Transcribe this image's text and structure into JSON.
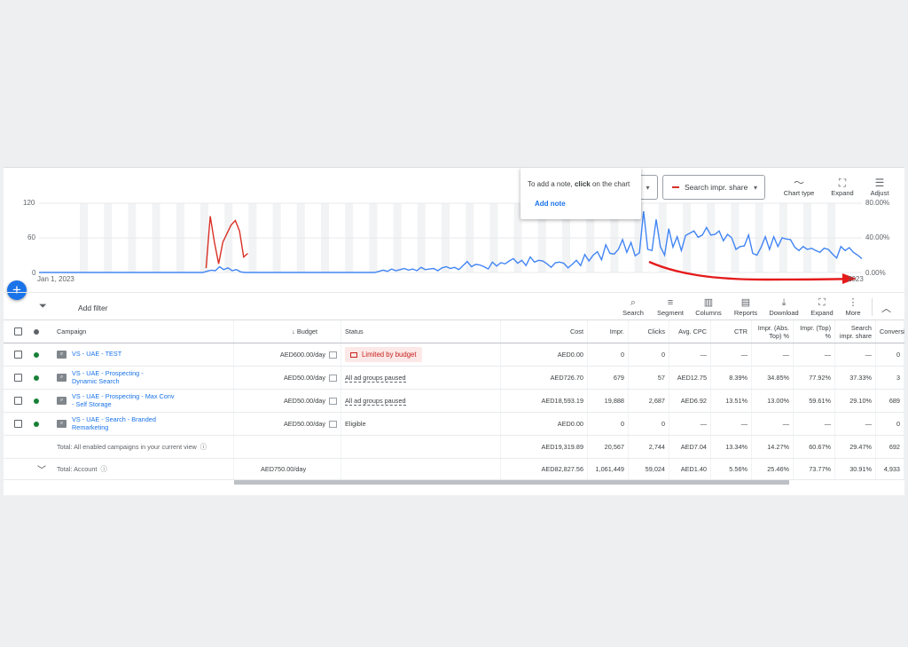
{
  "chart": {
    "y_left_ticks": [
      "120",
      "60",
      "0"
    ],
    "y_right_ticks": [
      "80.00%",
      "40.00%",
      "0.00%"
    ],
    "x_start": "Jan 1, 2023",
    "x_end": "2023",
    "note_popup": {
      "text_prefix": "To add a note, ",
      "text_bold": "click",
      "text_suffix": " on the chart",
      "add_note": "Add note"
    },
    "metric2_label": "Search impr. share",
    "colors": {
      "series1": "#4285f4",
      "series2": "#d93025",
      "arrow": "#e51b1b"
    },
    "tools": [
      {
        "icon": "chart-type-icon",
        "label": "Chart type"
      },
      {
        "icon": "expand-icon",
        "label": "Expand"
      },
      {
        "icon": "adjust-icon",
        "label": "Adjust"
      }
    ]
  },
  "toolbar": {
    "add_filter": "Add filter",
    "buttons": [
      {
        "icon": "search-icon",
        "label": "Search"
      },
      {
        "icon": "segment-icon",
        "label": "Segment"
      },
      {
        "icon": "columns-icon",
        "label": "Columns"
      },
      {
        "icon": "reports-icon",
        "label": "Reports"
      },
      {
        "icon": "download-icon",
        "label": "Download"
      },
      {
        "icon": "expand-icon",
        "label": "Expand"
      },
      {
        "icon": "more-icon",
        "label": "More"
      }
    ]
  },
  "table": {
    "headers": {
      "campaign": "Campaign",
      "budget": "Budget",
      "status": "Status",
      "cost": "Cost",
      "impr": "Impr.",
      "clicks": "Clicks",
      "avg_cpc": "Avg. CPC",
      "ctr": "CTR",
      "impr_abs_top": "Impr. (Abs. Top) %",
      "impr_top": "Impr. (Top) %",
      "search_impr_share": "Search impr. share",
      "conversions": "Conversi"
    },
    "rows": [
      {
        "campaign": "VS - UAE - TEST",
        "budget": "AED600.00/day",
        "status": "Limited by budget",
        "status_type": "limited",
        "cost": "AED0.00",
        "impr": "0",
        "clicks": "0",
        "avg_cpc": "—",
        "ctr": "—",
        "impr_abs_top": "—",
        "impr_top": "—",
        "search_impr_share": "—",
        "conversions": "0"
      },
      {
        "campaign": "VS - UAE - Prospecting - Dynamic Search",
        "budget": "AED50.00/day",
        "status": "All ad groups paused",
        "status_type": "paused",
        "cost": "AED726.70",
        "impr": "679",
        "clicks": "57",
        "avg_cpc": "AED12.75",
        "ctr": "8.39%",
        "impr_abs_top": "34.85%",
        "impr_top": "77.92%",
        "search_impr_share": "37.33%",
        "conversions": "3"
      },
      {
        "campaign": "VS - UAE - Prospecting - Max Conv - Self Storage",
        "budget": "AED50.00/day",
        "status": "All ad groups paused",
        "status_type": "paused",
        "cost": "AED18,593.19",
        "impr": "19,888",
        "clicks": "2,687",
        "avg_cpc": "AED6.92",
        "ctr": "13.51%",
        "impr_abs_top": "13.00%",
        "impr_top": "59.61%",
        "search_impr_share": "29.10%",
        "conversions": "689"
      },
      {
        "campaign": "VS - UAE - Search - Branded Remarketing",
        "budget": "AED50.00/day",
        "status": "Eligible",
        "status_type": "eligible",
        "cost": "AED0.00",
        "impr": "0",
        "clicks": "0",
        "avg_cpc": "—",
        "ctr": "—",
        "impr_abs_top": "—",
        "impr_top": "—",
        "search_impr_share": "—",
        "conversions": "0"
      }
    ],
    "total_enabled": {
      "label": "Total: All enabled campaigns in your current view",
      "cost": "AED19,319.89",
      "impr": "20,567",
      "clicks": "2,744",
      "avg_cpc": "AED7.04",
      "ctr": "13.34%",
      "impr_abs_top": "14.27%",
      "impr_top": "60.67%",
      "search_impr_share": "29.47%",
      "conversions": "692"
    },
    "total_account": {
      "label": "Total: Account",
      "budget": "AED750.00/day",
      "cost": "AED82,827.56",
      "impr": "1,061,449",
      "clicks": "59,024",
      "avg_cpc": "AED1.40",
      "ctr": "5.56%",
      "impr_abs_top": "25.46%",
      "impr_top": "73.77%",
      "search_impr_share": "30.91%",
      "conversions": "4,933"
    }
  },
  "chart_data": {
    "type": "line",
    "y_left_range": [
      0,
      120
    ],
    "y_right_range": [
      0,
      80
    ],
    "series": [
      {
        "color": "#4285f4",
        "axis": "left",
        "values": [
          0,
          0,
          0,
          0,
          0,
          0,
          0,
          0,
          0,
          0,
          0,
          0,
          0,
          0,
          0,
          0,
          0,
          0,
          0,
          0,
          0,
          0,
          0,
          0,
          0,
          0,
          0,
          0,
          0,
          0,
          0,
          0,
          0,
          0,
          0,
          0,
          0,
          0,
          0,
          0,
          2,
          4,
          3,
          10,
          5,
          8,
          3,
          5,
          1,
          0,
          0,
          0,
          0,
          0,
          0,
          0,
          0,
          0,
          0,
          0,
          0,
          0,
          0,
          0,
          0,
          0,
          0,
          0,
          0,
          0,
          0,
          0,
          0,
          0,
          0,
          0,
          0,
          0,
          0,
          0,
          0,
          2,
          4,
          2,
          6,
          3,
          5,
          7,
          4,
          6,
          3,
          9,
          5,
          6,
          7,
          3,
          8,
          10,
          7,
          9,
          5,
          12,
          19,
          10,
          14,
          13,
          10,
          6,
          18,
          11,
          17,
          15,
          20,
          24,
          16,
          21,
          12,
          27,
          18,
          21,
          20,
          15,
          9,
          17,
          18,
          16,
          8,
          14,
          21,
          12,
          31,
          20,
          30,
          36,
          22,
          48,
          33,
          32,
          40,
          57,
          35,
          52,
          29,
          34,
          106,
          40,
          38,
          92,
          45,
          30,
          76,
          44,
          62,
          38,
          64,
          68,
          72,
          61,
          65,
          78,
          65,
          66,
          72,
          55,
          66,
          60,
          40,
          45,
          46,
          65,
          33,
          30,
          44,
          62,
          40,
          62,
          45,
          60,
          58,
          57,
          44,
          38,
          45,
          40,
          42,
          38,
          35,
          42,
          40,
          32,
          25,
          45,
          38,
          43,
          35,
          30,
          24
        ]
      },
      {
        "color": "#d93025",
        "axis": "right",
        "values": [
          null,
          null,
          null,
          null,
          null,
          null,
          null,
          null,
          null,
          null,
          null,
          null,
          null,
          null,
          null,
          null,
          null,
          null,
          null,
          null,
          null,
          null,
          null,
          null,
          null,
          null,
          null,
          null,
          null,
          null,
          null,
          null,
          null,
          null,
          null,
          null,
          null,
          null,
          null,
          null,
          5,
          65,
          35,
          10,
          35,
          45,
          55,
          60,
          48,
          18,
          22,
          null,
          null,
          null,
          null,
          null,
          null,
          null,
          null,
          null,
          null,
          null,
          null,
          null,
          null,
          null,
          null,
          null,
          null,
          null,
          null,
          null,
          null,
          null,
          null,
          null,
          null,
          null,
          null,
          null,
          null,
          null,
          null,
          null,
          null,
          null,
          null,
          null,
          null,
          null,
          null,
          null,
          null,
          null,
          null,
          null,
          null,
          null,
          null,
          null,
          null,
          null,
          null,
          null,
          null,
          null,
          null,
          null,
          null,
          null,
          null,
          null,
          null,
          null,
          null,
          null,
          null,
          null,
          null,
          null,
          null,
          null,
          null,
          null,
          null,
          null,
          null,
          null,
          null,
          null,
          null,
          null,
          null,
          null,
          null,
          null,
          null,
          null,
          null,
          null,
          null,
          null,
          null,
          null,
          null,
          null,
          null,
          null,
          null,
          null,
          null,
          null,
          null,
          null,
          null,
          null,
          null,
          null,
          null,
          null,
          null,
          null,
          null,
          null,
          null,
          null,
          null,
          null,
          null,
          null,
          null,
          null,
          null,
          null,
          null,
          null,
          null,
          null,
          null,
          null,
          null,
          null,
          null,
          null,
          null,
          null,
          null,
          null,
          null,
          null,
          null,
          null,
          null,
          null,
          null,
          null,
          null,
          null
        ]
      }
    ]
  }
}
